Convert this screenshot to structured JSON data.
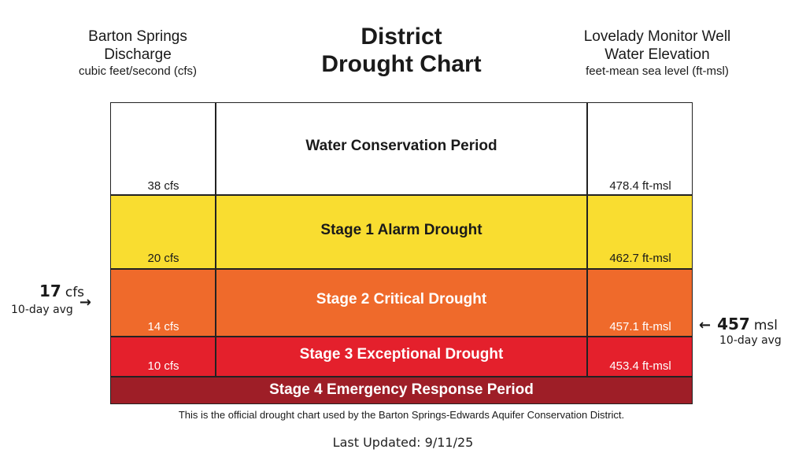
{
  "header": {
    "left": {
      "line1": "Barton Springs",
      "line2": "Discharge",
      "line3": "cubic feet/second (cfs)"
    },
    "center": {
      "line1": "District",
      "line2": "Drought Chart"
    },
    "right": {
      "line1": "Lovelady Monitor Well",
      "line2": "Water Elevation",
      "line3": "feet-mean sea level (ft-msl)"
    }
  },
  "stages": [
    {
      "label": "Water Conservation Period",
      "cfs": "38 cfs",
      "msl": "478.4 ft-msl",
      "color": "#ffffff",
      "text_color": "#1a1a1a"
    },
    {
      "label": "Stage 1 Alarm Drought",
      "cfs": "20 cfs",
      "msl": "462.7 ft-msl",
      "color": "#f9dd30",
      "text_color": "#1a1a1a"
    },
    {
      "label": "Stage 2 Critical Drought",
      "cfs": "14 cfs",
      "msl": "457.1 ft-msl",
      "color": "#ef6a2b",
      "text_color": "#ffffff"
    },
    {
      "label": "Stage 3 Exceptional Drought",
      "cfs": "10 cfs",
      "msl": "453.4 ft-msl",
      "color": "#e4202c",
      "text_color": "#ffffff"
    },
    {
      "label": "Stage 4 Emergency Response Period",
      "cfs": "",
      "msl": "",
      "color": "#9e1e27",
      "text_color": "#ffffff"
    }
  ],
  "markers": {
    "left": {
      "value": "17",
      "unit": "cfs",
      "sub": "10-day avg",
      "arrow": "→"
    },
    "right": {
      "value": "457",
      "unit": "msl",
      "sub": "10-day avg",
      "arrow": "←"
    }
  },
  "footnote": "This is the official drought chart used by the Barton Springs-Edwards Aquifer Conservation District.",
  "updated": "Last Updated: 9/11/25"
}
